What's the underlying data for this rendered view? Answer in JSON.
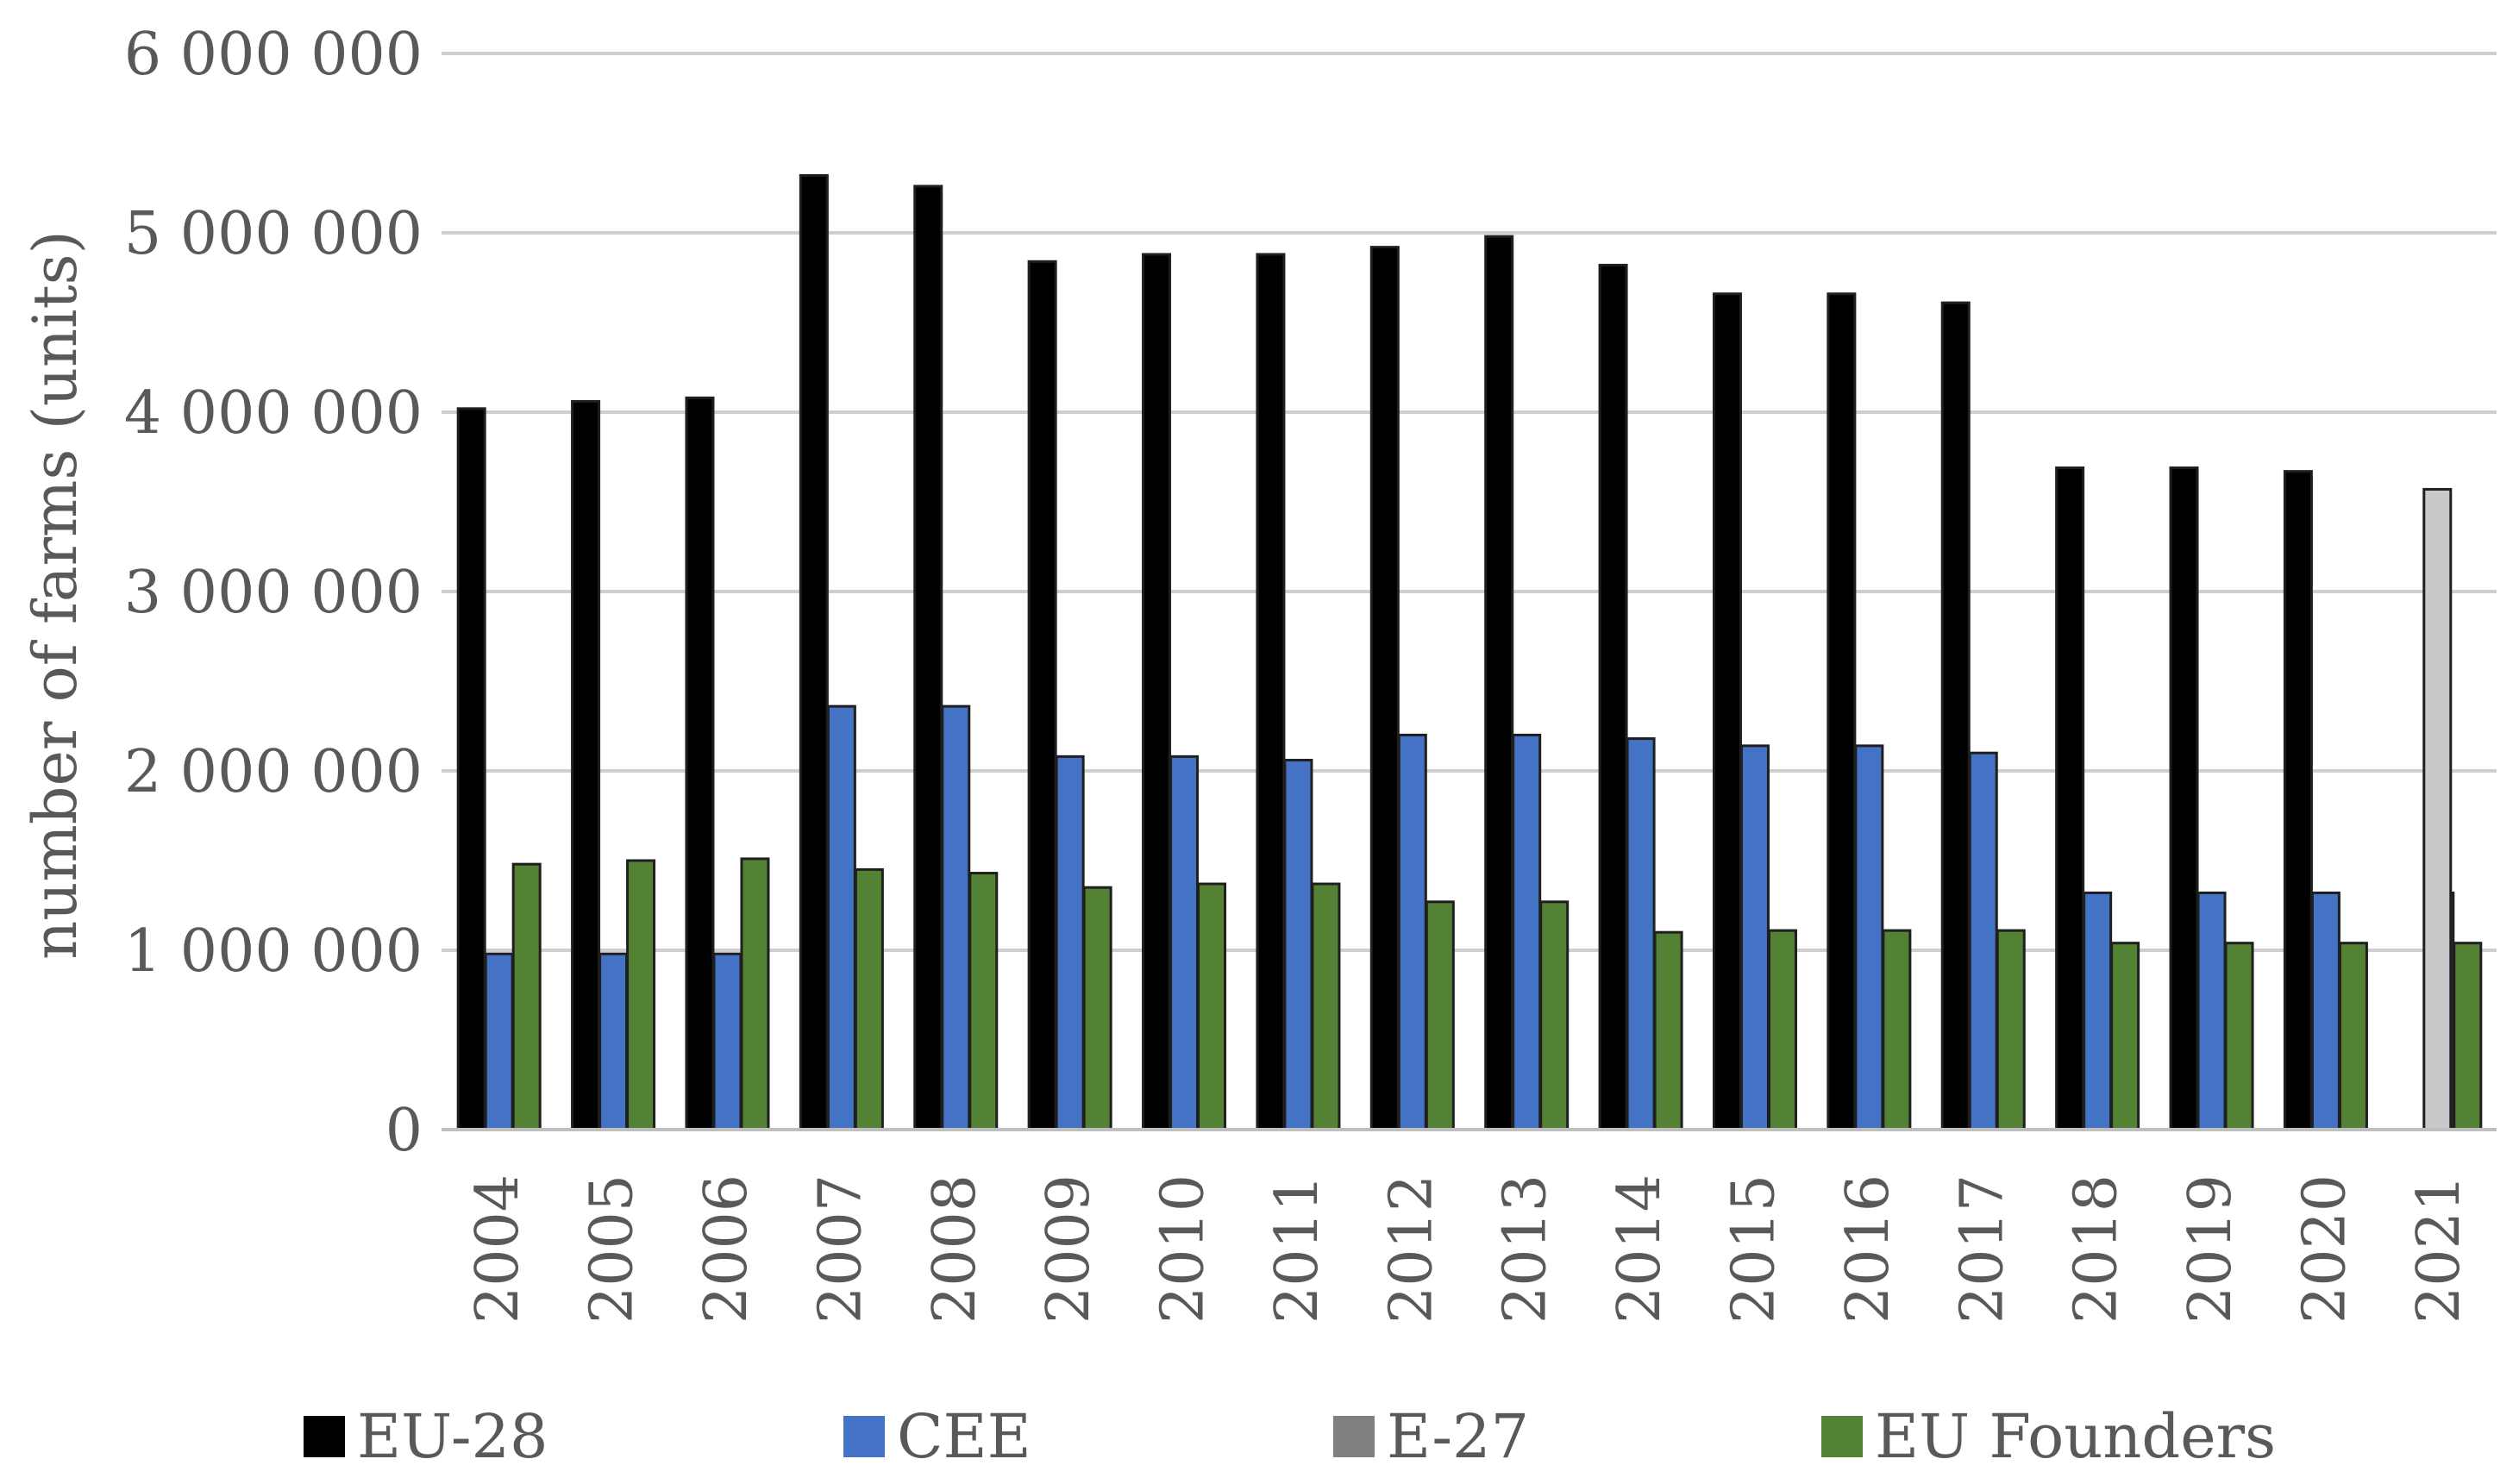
{
  "chart_data": {
    "type": "bar",
    "title": "",
    "xlabel": "",
    "ylabel": "number of farms (units)",
    "ylim": [
      0,
      6000000
    ],
    "yticks": [
      0,
      1000000,
      2000000,
      3000000,
      4000000,
      5000000,
      6000000
    ],
    "ytick_labels": [
      "0",
      "1 000 000",
      "2 000 000",
      "3 000 000",
      "4 000 000",
      "5 000 000",
      "6 000 000"
    ],
    "grid": true,
    "legend_position": "bottom",
    "categories": [
      "2004",
      "2005",
      "2006",
      "2007",
      "2008",
      "2009",
      "2010",
      "2011",
      "2012",
      "2013",
      "2014",
      "2015",
      "2016",
      "2017",
      "2018",
      "2019",
      "2020",
      "2021"
    ],
    "series": [
      {
        "name": "EU-28",
        "color": "#000000",
        "values": [
          4020000,
          4060000,
          4080000,
          5320000,
          5260000,
          4840000,
          4880000,
          4880000,
          4920000,
          4980000,
          4820000,
          4660000,
          4660000,
          4610000,
          3690000,
          3690000,
          3670000,
          null
        ]
      },
      {
        "name": "CEE",
        "color": "#4472c4",
        "values": [
          980000,
          980000,
          980000,
          2360000,
          2360000,
          2080000,
          2080000,
          2060000,
          2200000,
          2200000,
          2180000,
          2140000,
          2140000,
          2100000,
          1320000,
          1320000,
          1320000,
          1320000
        ]
      },
      {
        "name": "E-27",
        "color": "#c9c9c9",
        "values": [
          null,
          null,
          null,
          null,
          null,
          null,
          null,
          null,
          null,
          null,
          null,
          null,
          null,
          null,
          null,
          null,
          null,
          3570000
        ]
      },
      {
        "name": "EU Founders",
        "color": "#548235",
        "values": [
          1480000,
          1500000,
          1510000,
          1450000,
          1430000,
          1350000,
          1370000,
          1370000,
          1270000,
          1270000,
          1100000,
          1110000,
          1110000,
          1110000,
          1040000,
          1040000,
          1040000,
          1040000
        ]
      }
    ],
    "legend": [
      {
        "label": "EU-28",
        "color": "#000000"
      },
      {
        "label": "CEE",
        "color": "#4472c4"
      },
      {
        "label": "E-27",
        "color": "#808080"
      },
      {
        "label": "EU Founders",
        "color": "#548235"
      }
    ]
  }
}
